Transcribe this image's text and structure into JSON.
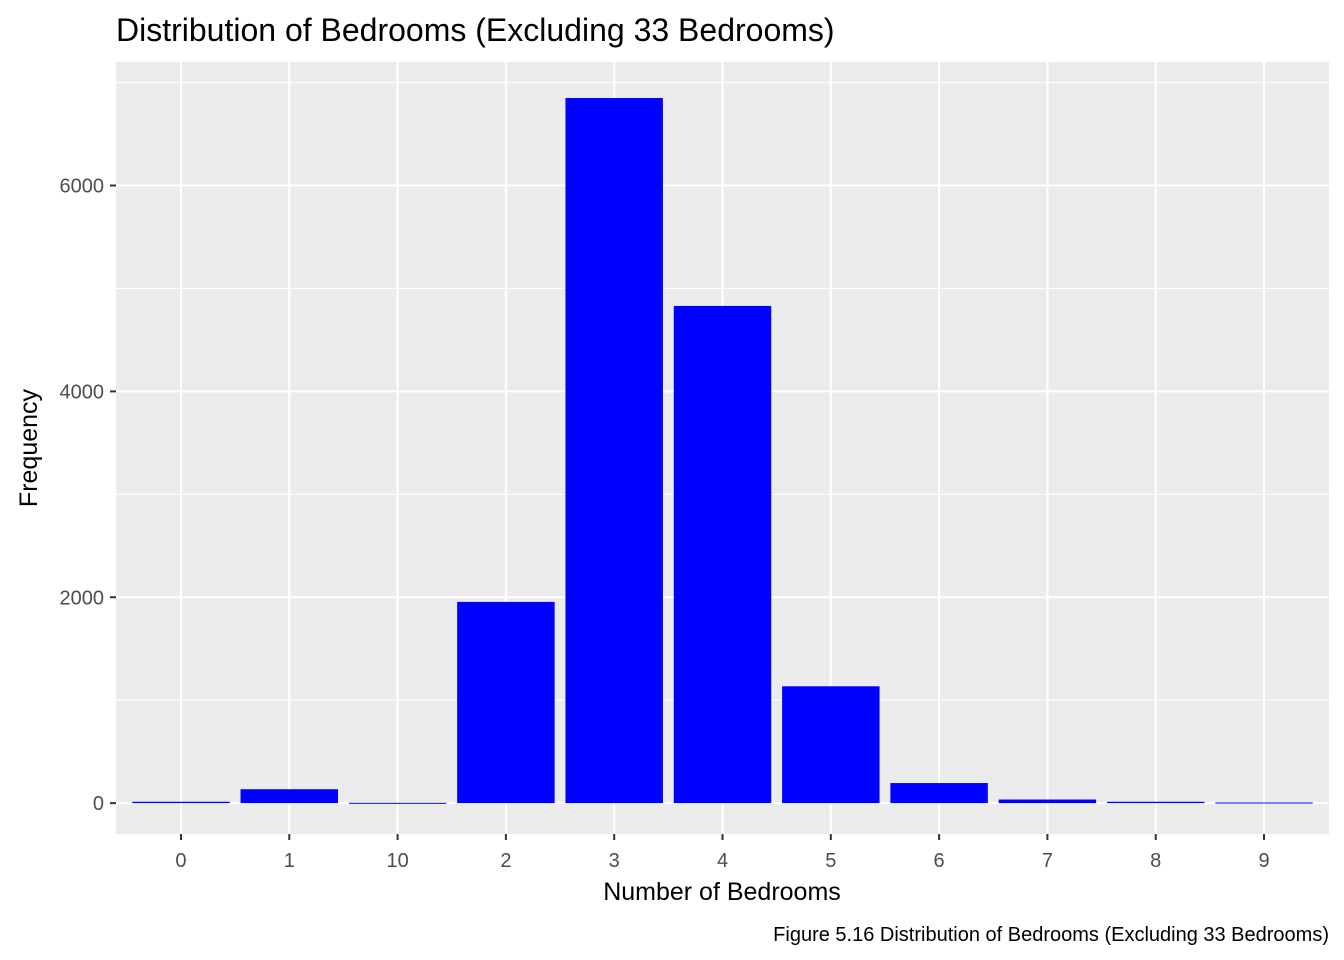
{
  "chart_data": {
    "type": "bar",
    "title": "Distribution of Bedrooms (Excluding 33 Bedrooms)",
    "xlabel": "Number of Bedrooms",
    "ylabel": "Frequency",
    "caption": "Figure 5.16 Distribution of Bedrooms (Excluding 33 Bedrooms)",
    "categories": [
      "0",
      "1",
      "10",
      "2",
      "3",
      "4",
      "5",
      "6",
      "7",
      "8",
      "9"
    ],
    "values": [
      13,
      135,
      3,
      1955,
      6850,
      4830,
      1135,
      195,
      35,
      13,
      6
    ],
    "ylim": [
      -300,
      7200
    ],
    "yticks": [
      0,
      2000,
      4000,
      6000
    ],
    "grid": true,
    "legend": "none",
    "bar_color": "#0000ff",
    "panel_background": "#ebebeb",
    "grid_color": "#ffffff"
  }
}
